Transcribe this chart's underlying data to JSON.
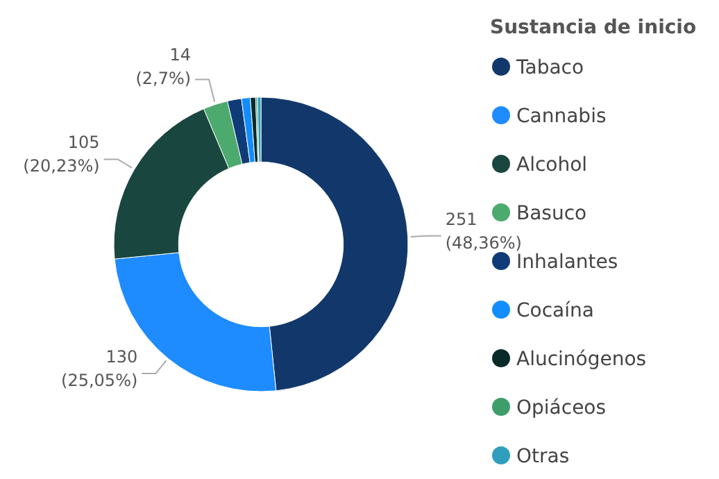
{
  "chart_data": {
    "type": "donut",
    "legend_title": "Sustancia de inicio",
    "legend": "right",
    "categories": [
      "Tabaco",
      "Cannabis",
      "Alcohol",
      "Basuco",
      "Inhalantes",
      "Cocaína",
      "Alucinógenos",
      "Opiáceos",
      "Otras"
    ],
    "values": [
      251,
      130,
      105,
      14,
      8,
      5,
      3,
      1,
      2
    ],
    "colors": [
      "#12386b",
      "#1e8bff",
      "#1a4640",
      "#4daa6e",
      "#0f3c78",
      "#118dff",
      "#0a2a2a",
      "#3e9e6a",
      "#2f9fbd"
    ],
    "value_labels": [
      "251\n(48,36%)",
      "130\n(25,05%)",
      "105\n(20,23%)",
      "14\n(2,7%)",
      null,
      null,
      null,
      null,
      null
    ]
  }
}
